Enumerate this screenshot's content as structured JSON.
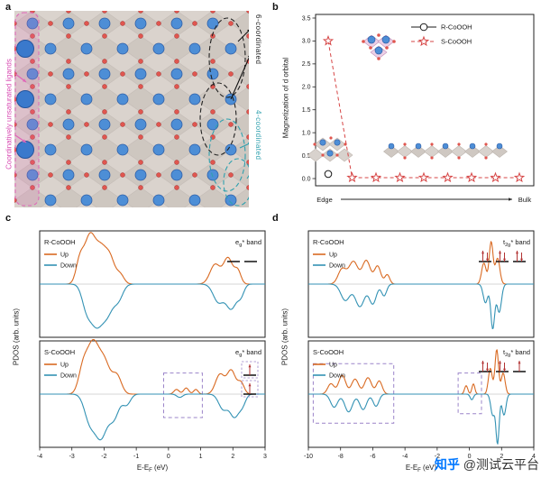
{
  "panels": {
    "a_label": "a",
    "b_label": "b",
    "c_label": "c",
    "d_label": "d"
  },
  "colors": {
    "up": "#d96a22",
    "down": "#3392b4",
    "box": "#9b84c9",
    "spin": "#b23333",
    "pink": "#e065b8",
    "teal": "#2fa0ae",
    "octa_light": "#dad3cd",
    "octa_dark": "#cec7c0",
    "blue": "#4d8ed6",
    "blue_big": "#3a79cc",
    "red": "#e0564f"
  },
  "panel_a": {
    "ligand_label": "Coordinatively unsaturated ligands",
    "six_label": "6-coordinated",
    "four_label": "4-coordinated"
  },
  "chart_data": [
    {
      "id": "b",
      "type": "scatter",
      "ylabel": "Magnetization of d orbital",
      "ylim": [
        0,
        3.5
      ],
      "yticks": [
        0,
        0.5,
        1,
        1.5,
        2,
        2.5,
        3,
        3.5
      ],
      "x_axis_annotation": {
        "left": "Edge",
        "right": "Bulk"
      },
      "series": [
        {
          "name": "R-CoOOH",
          "marker": "circle",
          "line": "solid",
          "color": "#1a1a1a",
          "x": [
            0
          ],
          "y": [
            0.1
          ]
        },
        {
          "name": "S-CoOOH",
          "marker": "star",
          "line": "dashed",
          "color": "#d64545",
          "x": [
            0,
            1,
            2,
            3,
            4,
            5,
            6,
            7,
            8
          ],
          "y": [
            3.0,
            0.02,
            0.02,
            0.02,
            0.02,
            0.02,
            0.02,
            0.02,
            0.02
          ]
        }
      ]
    },
    {
      "id": "c",
      "type": "line",
      "xlabel": "E-E_F (eV)",
      "ylabel": "PDOS (arb. units)",
      "xlim": [
        -4,
        3
      ],
      "xticks": [
        -4,
        -3,
        -2,
        -1,
        0,
        1,
        2,
        3
      ],
      "legend": {
        "up": "Up",
        "down": "Down"
      },
      "subpanels": [
        {
          "title": "R-CoOOH",
          "band_label": "e_g* band",
          "orbitals": [
            "empty",
            "empty"
          ],
          "orbital_layout": "row",
          "up_peaks": [
            [
              -2.75,
              0.5,
              0.12
            ],
            [
              -2.45,
              0.95,
              0.16
            ],
            [
              -2.1,
              0.75,
              0.18
            ],
            [
              -1.8,
              0.45,
              0.14
            ],
            [
              -1.5,
              0.2,
              0.12
            ],
            [
              1.45,
              0.42,
              0.16
            ],
            [
              1.85,
              0.55,
              0.14
            ],
            [
              2.15,
              0.28,
              0.1
            ]
          ],
          "down_peaks": [
            [
              -2.55,
              -0.45,
              0.14
            ],
            [
              -2.25,
              -0.8,
              0.18
            ],
            [
              -1.9,
              -0.6,
              0.18
            ],
            [
              -1.55,
              -0.3,
              0.14
            ],
            [
              1.55,
              -0.38,
              0.16
            ],
            [
              1.95,
              -0.52,
              0.16
            ],
            [
              2.25,
              -0.22,
              0.1
            ]
          ],
          "boxes": []
        },
        {
          "title": "S-CoOOH",
          "band_label": "e_g* band",
          "orbitals": [
            "up",
            "up"
          ],
          "orbital_layout": "column",
          "orbital_boxed": true,
          "up_peaks": [
            [
              -2.65,
              0.55,
              0.14
            ],
            [
              -2.35,
              1.0,
              0.17
            ],
            [
              -2.0,
              0.7,
              0.18
            ],
            [
              -1.6,
              0.38,
              0.14
            ],
            [
              0.25,
              0.1,
              0.08
            ],
            [
              0.55,
              0.13,
              0.08
            ],
            [
              0.85,
              0.1,
              0.07
            ],
            [
              1.6,
              0.42,
              0.14
            ],
            [
              1.95,
              0.5,
              0.13
            ],
            [
              2.25,
              0.24,
              0.1
            ]
          ],
          "down_peaks": [
            [
              -2.45,
              -0.55,
              0.16
            ],
            [
              -2.1,
              -0.9,
              0.18
            ],
            [
              -1.7,
              -0.5,
              0.16
            ],
            [
              -1.3,
              -0.22,
              0.12
            ],
            [
              0.35,
              -0.07,
              0.09
            ],
            [
              1.7,
              -0.32,
              0.14
            ],
            [
              2.05,
              -0.48,
              0.14
            ],
            [
              2.3,
              -0.2,
              0.1
            ]
          ],
          "boxes": [
            {
              "x1": -0.15,
              "x2": 1.05,
              "y1": -0.5,
              "y2": 0.45
            }
          ]
        }
      ]
    },
    {
      "id": "d",
      "type": "line",
      "xlabel": "E-E_F (eV)",
      "ylabel": "PDOS (arb. units)",
      "xlim": [
        -10,
        4
      ],
      "xticks": [
        -10,
        -8,
        -6,
        -4,
        -2,
        0,
        2,
        4
      ],
      "legend": {
        "up": "Up",
        "down": "Down"
      },
      "subpanels": [
        {
          "title": "R-CoOOH",
          "band_label": "t_2g* band",
          "orbitals": [
            "updown",
            "updown",
            "updown"
          ],
          "orbital_layout": "row",
          "up_peaks": [
            [
              -7.9,
              0.32,
              0.25
            ],
            [
              -7.2,
              0.48,
              0.28
            ],
            [
              -6.4,
              0.5,
              0.25
            ],
            [
              -5.7,
              0.38,
              0.2
            ],
            [
              -5.1,
              0.2,
              0.15
            ],
            [
              0.9,
              0.45,
              0.14
            ],
            [
              1.35,
              0.9,
              0.12
            ],
            [
              1.75,
              0.55,
              0.14
            ]
          ],
          "down_peaks": [
            [
              -7.7,
              -0.35,
              0.28
            ],
            [
              -6.8,
              -0.48,
              0.28
            ],
            [
              -6.0,
              -0.42,
              0.22
            ],
            [
              -5.3,
              -0.25,
              0.16
            ],
            [
              1.0,
              -0.4,
              0.14
            ],
            [
              1.45,
              -0.95,
              0.12
            ],
            [
              1.85,
              -0.6,
              0.14
            ]
          ],
          "boxes": []
        },
        {
          "title": "S-CoOOH",
          "band_label": "t_2g* band",
          "orbitals": [
            "updown",
            "updown",
            "up"
          ],
          "orbital_layout": "row",
          "up_peaks": [
            [
              -8.6,
              0.22,
              0.2
            ],
            [
              -7.9,
              0.4,
              0.22
            ],
            [
              -7.1,
              0.32,
              0.22
            ],
            [
              -6.3,
              0.35,
              0.22
            ],
            [
              -5.6,
              0.28,
              0.18
            ],
            [
              -0.2,
              0.18,
              0.1
            ],
            [
              0.25,
              0.22,
              0.09
            ],
            [
              1.3,
              0.55,
              0.12
            ],
            [
              1.7,
              0.95,
              0.11
            ],
            [
              2.1,
              0.45,
              0.12
            ]
          ],
          "down_peaks": [
            [
              -8.4,
              -0.28,
              0.22
            ],
            [
              -7.5,
              -0.38,
              0.24
            ],
            [
              -6.6,
              -0.33,
              0.22
            ],
            [
              -5.8,
              -0.26,
              0.18
            ],
            [
              0.15,
              -0.12,
              0.1
            ],
            [
              1.45,
              -0.45,
              0.12
            ],
            [
              1.75,
              -1.05,
              0.1
            ],
            [
              2.15,
              -0.45,
              0.12
            ]
          ],
          "boxes": [
            {
              "x1": -9.7,
              "x2": -4.7,
              "y1": -0.62,
              "y2": 0.65
            },
            {
              "x1": -0.7,
              "x2": 0.75,
              "y1": -0.42,
              "y2": 0.45
            }
          ]
        }
      ]
    }
  ],
  "watermark": {
    "prefix": "知乎",
    "handle": "@测试云平台"
  }
}
